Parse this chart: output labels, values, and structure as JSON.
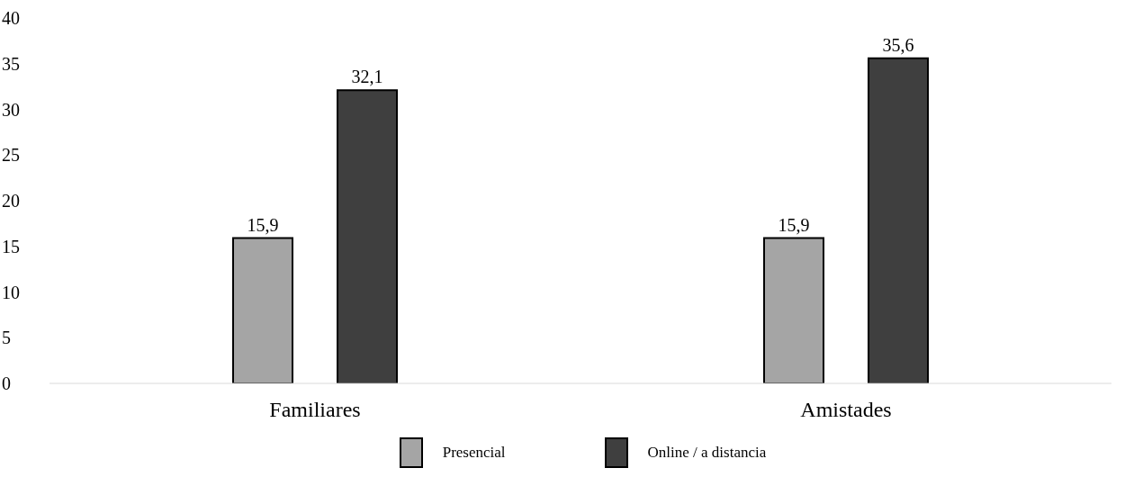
{
  "chart_data": {
    "type": "bar",
    "categories": [
      "Familiares",
      "Amistades"
    ],
    "series": [
      {
        "name": "Presencial",
        "color": "#a5a5a5",
        "values": [
          15.9,
          15.9
        ],
        "value_labels": [
          "15,9",
          "15,9"
        ]
      },
      {
        "name": "Online / a distancia",
        "color": "#3f3f3f",
        "values": [
          32.1,
          35.6
        ],
        "value_labels": [
          "32,1",
          "35,6"
        ]
      }
    ],
    "ylim": [
      0,
      40
    ],
    "yticks": [
      0,
      5,
      10,
      15,
      20,
      25,
      30,
      35,
      40
    ],
    "grid": false,
    "legend": "bottom"
  }
}
